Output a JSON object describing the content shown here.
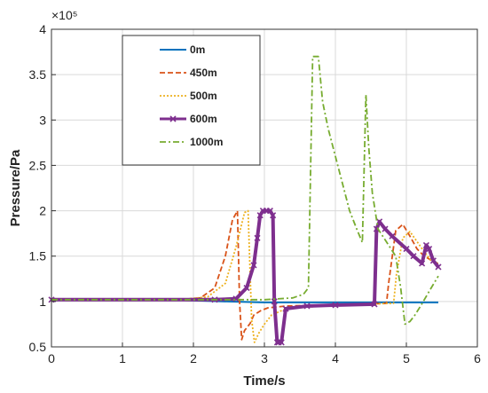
{
  "chart_data": {
    "type": "line",
    "title": "",
    "xlabel": "Time/s",
    "ylabel": "Pressure/Pa",
    "y_multiplier": "×10⁵",
    "xlim": [
      0,
      6
    ],
    "ylim": [
      0.5,
      4
    ],
    "xticks": [
      "0",
      "1",
      "2",
      "3",
      "4",
      "5",
      "6"
    ],
    "yticks": [
      "0.5",
      "1",
      "1.5",
      "2",
      "2.5",
      "3",
      "3.5",
      "4"
    ],
    "grid": true,
    "legend_position": "top-left",
    "series": [
      {
        "name": "0m",
        "color": "#0072BD",
        "style": "solid",
        "x": [
          0,
          1.5,
          2.0,
          2.5,
          3.0,
          3.2,
          3.5,
          4.0,
          4.5,
          5.0,
          5.45
        ],
        "y": [
          1.02,
          1.02,
          1.01,
          1.0,
          0.99,
          0.99,
          0.99,
          0.99,
          0.99,
          0.99,
          0.99
        ]
      },
      {
        "name": "450m",
        "color": "#D95319",
        "style": "dashed",
        "x": [
          0,
          1.8,
          2.1,
          2.3,
          2.45,
          2.55,
          2.62,
          2.65,
          2.68,
          2.72,
          2.8,
          2.85,
          2.95,
          3.05,
          3.3,
          3.8,
          4.4,
          4.72,
          4.75,
          4.85,
          4.95,
          5.05,
          5.15,
          5.25,
          5.32,
          5.4,
          5.45
        ],
        "y": [
          1.02,
          1.02,
          1.04,
          1.15,
          1.5,
          1.9,
          2.0,
          1.0,
          0.58,
          0.68,
          0.76,
          0.85,
          0.9,
          0.93,
          0.95,
          0.96,
          0.97,
          0.98,
          1.2,
          1.78,
          1.85,
          1.72,
          1.58,
          1.5,
          1.47,
          1.42,
          1.42
        ]
      },
      {
        "name": "500m",
        "color": "#EDB120",
        "style": "dotted",
        "x": [
          0,
          1.8,
          2.2,
          2.45,
          2.6,
          2.72,
          2.77,
          2.82,
          2.86,
          2.92,
          3.0,
          3.1,
          3.3,
          3.8,
          4.4,
          4.82,
          4.86,
          4.95,
          5.05,
          5.15,
          5.25,
          5.35,
          5.45
        ],
        "y": [
          1.02,
          1.02,
          1.05,
          1.2,
          1.6,
          1.98,
          2.0,
          0.8,
          0.55,
          0.65,
          0.75,
          0.85,
          0.92,
          0.95,
          0.97,
          0.98,
          1.3,
          1.7,
          1.77,
          1.66,
          1.55,
          1.45,
          1.42
        ]
      },
      {
        "name": "600m",
        "color": "#7E2F8E",
        "style": "solid-x-marker",
        "x": [
          0,
          2.3,
          2.6,
          2.75,
          2.85,
          2.9,
          2.94,
          2.98,
          3.03,
          3.08,
          3.12,
          3.14,
          3.18,
          3.2,
          3.24,
          3.3,
          3.6,
          4.0,
          4.55,
          4.58,
          4.62,
          4.7,
          4.8,
          5.0,
          5.1,
          5.22,
          5.28,
          5.32,
          5.38,
          5.45
        ],
        "y": [
          1.02,
          1.02,
          1.03,
          1.15,
          1.4,
          1.7,
          1.95,
          2.0,
          2.0,
          2.0,
          1.95,
          1.0,
          0.55,
          0.55,
          0.55,
          0.92,
          0.95,
          0.96,
          0.97,
          1.8,
          1.88,
          1.8,
          1.72,
          1.58,
          1.5,
          1.42,
          1.62,
          1.58,
          1.45,
          1.38
        ]
      },
      {
        "name": "1000m",
        "color": "#77AC30",
        "style": "dash-dot",
        "x": [
          0,
          3.0,
          3.4,
          3.55,
          3.62,
          3.68,
          3.72,
          3.76,
          3.82,
          3.9,
          4.0,
          4.1,
          4.2,
          4.3,
          4.38,
          4.43,
          4.47,
          4.52,
          4.6,
          4.75,
          4.85,
          4.92,
          4.98,
          5.05,
          5.12,
          5.2,
          5.35,
          5.45
        ],
        "y": [
          1.02,
          1.02,
          1.04,
          1.08,
          1.15,
          3.7,
          3.7,
          3.7,
          3.2,
          2.9,
          2.6,
          2.3,
          2.0,
          1.8,
          1.65,
          3.28,
          2.7,
          2.2,
          1.8,
          1.62,
          1.5,
          1.15,
          0.75,
          0.78,
          0.85,
          0.95,
          1.15,
          1.28
        ]
      }
    ]
  }
}
